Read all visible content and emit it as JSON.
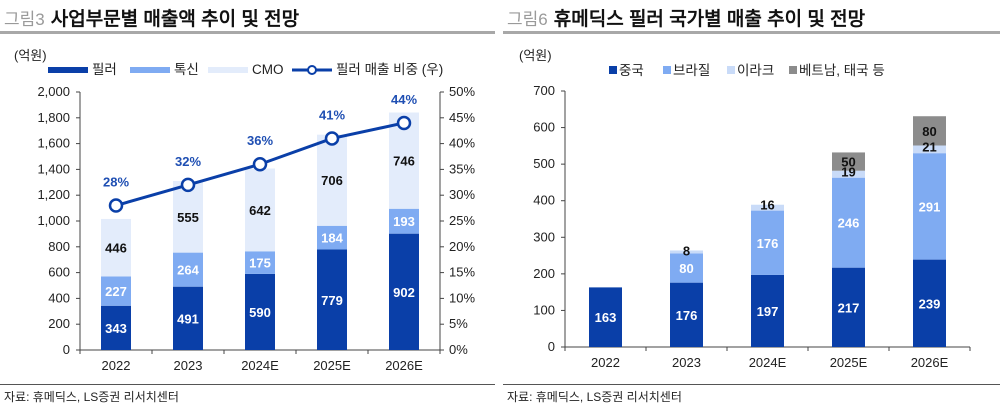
{
  "colors": {
    "dark_blue": "#0a3fa8",
    "mid_blue": "#7fabf2",
    "light_blue": "#e3ecfb",
    "pale_blue": "#c9dbf8",
    "gray": "#8c8c8c",
    "line_blue": "#0a3fa8",
    "pct_text": "#1f4fb3"
  },
  "panels": [
    {
      "fig_num": "그림3",
      "title": "사업부문별 매출액 추이 및 전망",
      "source": "자료: 휴메딕스, LS증권 리서치센터"
    },
    {
      "fig_num": "그림6",
      "title": "휴메딕스 필러 국가별 매출 추이 및 전망",
      "source": "자료: 휴메딕스, LS증권 리서치센터"
    }
  ],
  "chart_data": [
    {
      "type": "bar",
      "stacked": true,
      "title": "사업부문별 매출액 추이 및 전망",
      "unit_label": "(억원)",
      "categories": [
        "2022",
        "2023",
        "2024E",
        "2025E",
        "2026E"
      ],
      "series": [
        {
          "name": "필러",
          "color": "#0a3fa8",
          "label_color": "#ffffff",
          "values": [
            343,
            491,
            590,
            779,
            902
          ]
        },
        {
          "name": "톡신",
          "color": "#7fabf2",
          "label_color": "#ffffff",
          "values": [
            227,
            264,
            175,
            184,
            193
          ]
        },
        {
          "name": "CMO",
          "color": "#e3ecfb",
          "label_color": "#111111",
          "values": [
            446,
            555,
            642,
            706,
            746
          ]
        }
      ],
      "line_series": {
        "name": "필러 매출 비중 (우)",
        "axis": "right",
        "values": [
          28,
          32,
          36,
          41,
          44
        ],
        "labels": [
          "28%",
          "32%",
          "36%",
          "41%",
          "44%"
        ]
      },
      "ylim": [
        0,
        2000
      ],
      "yticks": [
        0,
        200,
        400,
        600,
        800,
        1000,
        1200,
        1400,
        1600,
        1800,
        2000
      ],
      "ytick_labels": [
        "0",
        "200",
        "400",
        "600",
        "800",
        "1,000",
        "1,200",
        "1,400",
        "1,600",
        "1,800",
        "2,000"
      ],
      "y2lim": [
        0,
        50
      ],
      "y2ticks": [
        0,
        5,
        10,
        15,
        20,
        25,
        30,
        35,
        40,
        45,
        50
      ],
      "y2tick_labels": [
        "0%",
        "5%",
        "10%",
        "15%",
        "20%",
        "25%",
        "30%",
        "35%",
        "40%",
        "45%",
        "50%"
      ],
      "legend": [
        "필러",
        "톡신",
        "CMO",
        "필러 매출 비중 (우)"
      ],
      "legend_position": "top",
      "grid": false
    },
    {
      "type": "bar",
      "stacked": true,
      "title": "휴메딕스 필러 국가별 매출 추이 및 전망",
      "unit_label": "(억원)",
      "categories": [
        "2022",
        "2023",
        "2024E",
        "2025E",
        "2026E"
      ],
      "series": [
        {
          "name": "중국",
          "color": "#0a3fa8",
          "label_color": "#ffffff",
          "values": [
            163,
            176,
            197,
            217,
            239
          ]
        },
        {
          "name": "브라질",
          "color": "#7fabf2",
          "label_color": "#ffffff",
          "values": [
            0,
            80,
            176,
            246,
            291
          ]
        },
        {
          "name": "이라크",
          "color": "#c9dbf8",
          "label_color": "#111111",
          "values": [
            0,
            8,
            16,
            19,
            21
          ]
        },
        {
          "name": "베트남, 태국 등",
          "color": "#8c8c8c",
          "label_color": "#111111",
          "values": [
            0,
            0,
            0,
            50,
            80
          ]
        }
      ],
      "ylim": [
        0,
        700
      ],
      "yticks": [
        0,
        100,
        200,
        300,
        400,
        500,
        600,
        700
      ],
      "ytick_labels": [
        "0",
        "100",
        "200",
        "300",
        "400",
        "500",
        "600",
        "700"
      ],
      "legend": [
        "중국",
        "브라질",
        "이라크",
        "베트남, 태국 등"
      ],
      "legend_position": "top",
      "grid": false
    }
  ]
}
